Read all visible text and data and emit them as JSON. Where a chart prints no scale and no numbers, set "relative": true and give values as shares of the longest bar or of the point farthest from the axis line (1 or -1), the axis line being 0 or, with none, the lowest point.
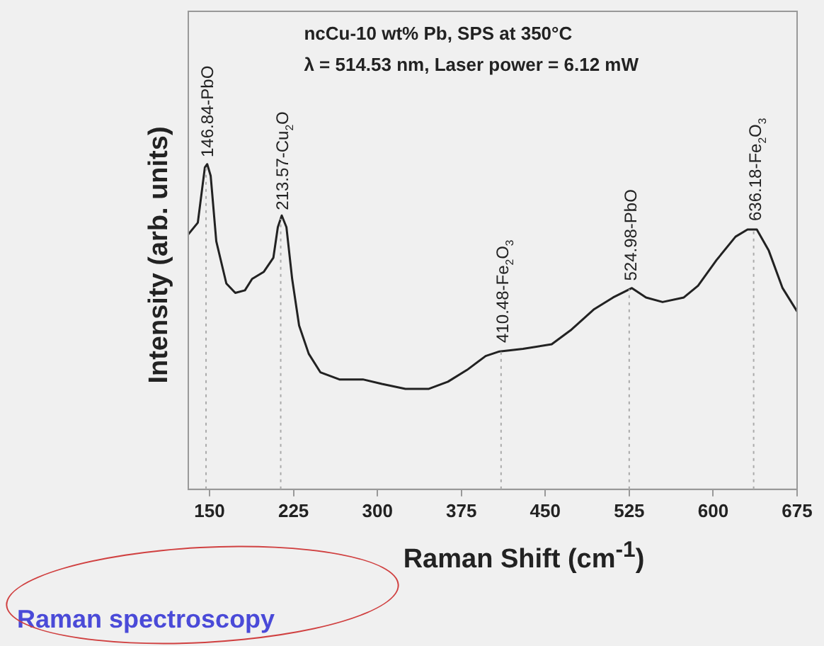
{
  "chart_data": {
    "type": "line",
    "title": "ncCu-10 wt% Pb, SPS at 350°C",
    "subtitle": "λ = 514.53 nm, Laser power = 6.12 mW",
    "xlabel": "Raman Shift (cm$^{-1}$)",
    "ylabel": "Intensity (arb. units)",
    "annotations": [
      "Raman spectroscopy"
    ],
    "relative": true,
    "marker": "none",
    "legend": false,
    "grid": false,
    "color": "#222222",
    "xlim": [
      131,
      675
    ],
    "xticks": [
      150,
      225,
      300,
      375,
      450,
      525,
      600,
      675
    ],
    "x": [
      131,
      139.5,
      145.8,
      147.9,
      151,
      156,
      165,
      173,
      181.6,
      188,
      198.5,
      207,
      211,
      214.5,
      218.7,
      223.8,
      230,
      238.6,
      249,
      266,
      287,
      304,
      325,
      346,
      363,
      380,
      396.7,
      409,
      430,
      455.7,
      472.6,
      493.7,
      510.6,
      527.4,
      540,
      554.8,
      573.8,
      586.5,
      603,
      620,
      630.7,
      639,
      649.7,
      662,
      675
    ],
    "values": [
      0.784,
      0.82,
      0.99,
      1.0,
      0.964,
      0.763,
      0.633,
      0.604,
      0.612,
      0.647,
      0.669,
      0.712,
      0.806,
      0.842,
      0.806,
      0.647,
      0.504,
      0.417,
      0.36,
      0.338,
      0.338,
      0.324,
      0.309,
      0.309,
      0.331,
      0.367,
      0.41,
      0.424,
      0.432,
      0.446,
      0.489,
      0.554,
      0.59,
      0.619,
      0.59,
      0.576,
      0.59,
      0.626,
      0.705,
      0.777,
      0.799,
      0.799,
      0.734,
      0.619,
      0.547
    ],
    "ref_lines": [
      {
        "axis": "x",
        "value": 146.84,
        "label": "146.84-PbO",
        "color": "#aaaaaa",
        "line_style": "dotted"
      },
      {
        "axis": "x",
        "value": 213.57,
        "label": "213.57-Cu$_{2}$O",
        "color": "#aaaaaa",
        "line_style": "dotted"
      },
      {
        "axis": "x",
        "value": 410.48,
        "label": "410.48-Fe$_{2}$O$_{3}$",
        "color": "#aaaaaa",
        "line_style": "dotted"
      },
      {
        "axis": "x",
        "value": 524.98,
        "label": "524.98-PbO",
        "color": "#aaaaaa",
        "line_style": "dotted"
      },
      {
        "axis": "x",
        "value": 636.18,
        "label": "636.18-Fe$_{2}$O$_{3}$",
        "color": "#aaaaaa",
        "line_style": "dotted"
      }
    ]
  }
}
